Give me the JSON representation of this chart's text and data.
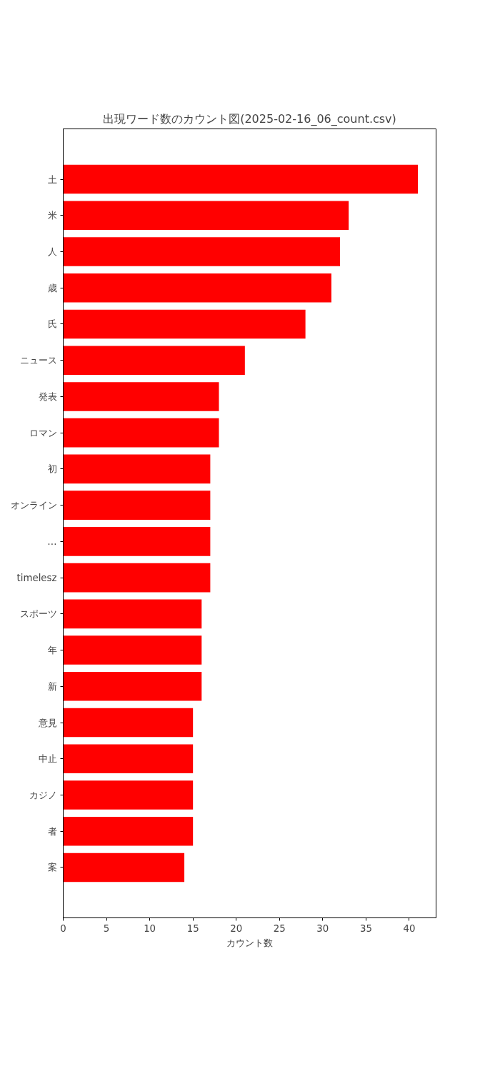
{
  "chart_data": {
    "type": "bar",
    "orientation": "horizontal",
    "title": "出現ワード数のカウント図(2025-02-16_06_count.csv)",
    "xlabel": "カウント数",
    "categories": [
      "土",
      "米",
      "人",
      "歳",
      "氏",
      "ニュース",
      "発表",
      "ロマン",
      "初",
      "オンライン",
      "…",
      "timelesz",
      "スポーツ",
      "年",
      "新",
      "意見",
      "中止",
      "カジノ",
      "者",
      "案"
    ],
    "values": [
      41,
      33,
      32,
      31,
      28,
      21,
      18,
      18,
      17,
      17,
      17,
      17,
      16,
      16,
      16,
      15,
      15,
      15,
      15,
      14
    ],
    "color": "#ff0000",
    "xlim": [
      0,
      43.1
    ],
    "xticks": [
      0,
      5,
      10,
      15,
      20,
      25,
      30,
      35,
      40
    ],
    "grid": false
  }
}
